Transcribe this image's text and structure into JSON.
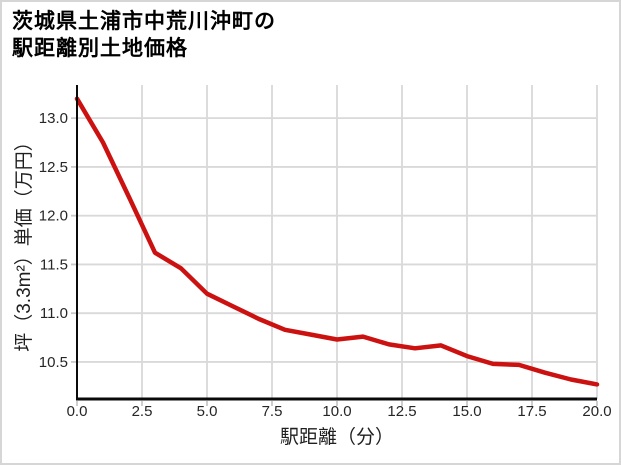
{
  "title": {
    "line1": "茨城県土浦市中荒川沖町の",
    "line2": "駅距離別土地価格"
  },
  "chart_data": {
    "type": "line",
    "title": "茨城県土浦市中荒川沖町の駅距離別土地価格",
    "xlabel": "駅距離（分）",
    "ylabel": "坪（3.3m²）単価（万円）",
    "x": [
      0,
      1,
      2,
      3,
      4,
      5,
      6,
      7,
      8,
      9,
      10,
      11,
      12,
      13,
      14,
      15,
      16,
      17,
      18,
      19,
      20
    ],
    "values": [
      13.2,
      12.75,
      12.19,
      11.62,
      11.46,
      11.2,
      11.07,
      10.94,
      10.83,
      10.78,
      10.73,
      10.76,
      10.68,
      10.64,
      10.67,
      10.56,
      10.48,
      10.47,
      10.39,
      10.32,
      10.27
    ],
    "x_ticks": [
      0,
      2.5,
      5,
      7.5,
      10,
      12.5,
      15,
      17.5,
      20
    ],
    "x_tick_labels": [
      "0.0",
      "2.5",
      "5.0",
      "7.5",
      "10.0",
      "12.5",
      "15.0",
      "17.5",
      "20.0"
    ],
    "y_ticks": [
      13.0,
      12.5,
      12.0,
      11.5,
      11.0,
      10.5
    ],
    "y_tick_labels": [
      "13.0",
      "12.5",
      "12.0",
      "11.5",
      "11.0",
      "10.5"
    ],
    "xlim": [
      0,
      20
    ],
    "ylim": [
      10.12,
      13.34
    ],
    "grid": true,
    "legend": false,
    "line_color": "#cc1111"
  },
  "colors": {
    "line": "#cc1111",
    "grid": "#d9d9d9",
    "spine": "#0a0a0a",
    "text": "#262626",
    "background": "#ffffff",
    "frame_border": "#d6d6d6"
  }
}
